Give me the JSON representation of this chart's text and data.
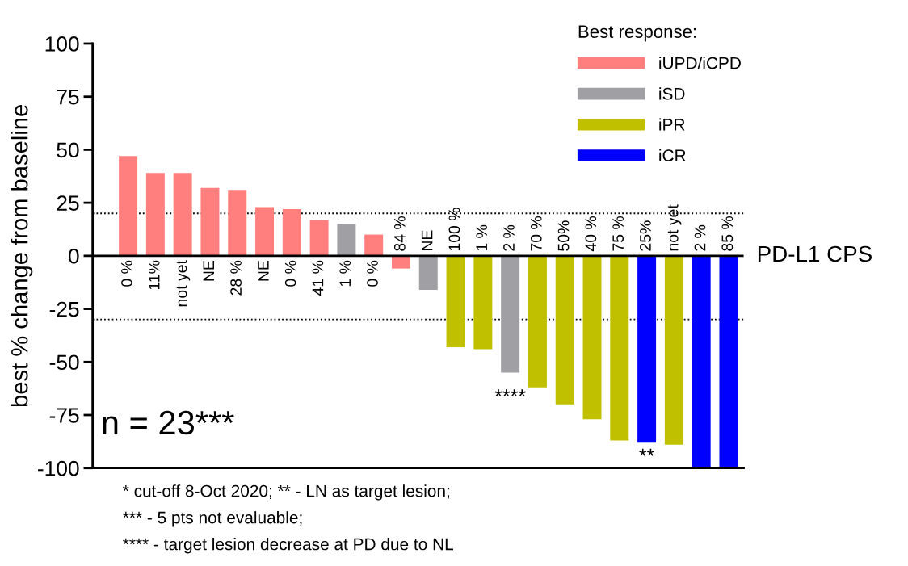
{
  "chart_data": {
    "type": "bar",
    "ylabel": "best % change from baseline",
    "legend_title": "Best response:",
    "legend": "top right",
    "categories": [
      "0 %",
      "11%",
      "not yet",
      "NE",
      "28 %",
      "NE",
      "0 %",
      "41 %",
      "1 %",
      "0 %",
      "84 %",
      "NE",
      "100 %",
      "1 %",
      "2 %",
      "70 %",
      "50%",
      "40 %",
      "75 %",
      "25%",
      "not yet",
      "2 %",
      "85 %"
    ],
    "series": [
      {
        "name": "iUPD/iCPD",
        "color": "#ff7f7f",
        "values": [
          47,
          39,
          39,
          32,
          31,
          23,
          22,
          17,
          null,
          10,
          -6,
          null,
          null,
          null,
          null,
          null,
          null,
          null,
          null,
          null,
          null,
          null,
          null
        ]
      },
      {
        "name": "iSD",
        "color": "#a0a0a4",
        "values": [
          null,
          null,
          null,
          null,
          null,
          null,
          null,
          null,
          15,
          null,
          null,
          -16,
          null,
          null,
          -55,
          null,
          null,
          null,
          null,
          null,
          null,
          null,
          null
        ]
      },
      {
        "name": "iPR",
        "color": "#c0c000",
        "values": [
          null,
          null,
          null,
          null,
          null,
          null,
          null,
          null,
          null,
          null,
          null,
          null,
          -43,
          -44,
          null,
          -62,
          -70,
          -77,
          -87,
          null,
          -89,
          null,
          null
        ]
      },
      {
        "name": "iCR",
        "color": "#0000ff",
        "values": [
          null,
          null,
          null,
          null,
          null,
          null,
          null,
          null,
          null,
          null,
          null,
          null,
          null,
          null,
          null,
          null,
          null,
          null,
          null,
          -88,
          null,
          -100,
          -100
        ]
      }
    ],
    "ylim": [
      -100,
      100
    ],
    "yticks": [
      -100,
      -75,
      -50,
      -25,
      0,
      25,
      50,
      75,
      100
    ],
    "ref_lines": [
      {
        "axis": "y",
        "value": 20,
        "line_style": "dotted"
      },
      {
        "axis": "y",
        "value": -30,
        "line_style": "dotted"
      }
    ],
    "annotations": [
      "PD-L1 CPS",
      "n = 23***",
      "****",
      "**",
      "* cut-off 8-Oct 2020; ** - LN as target lesion;",
      "*** - 5 pts not evaluable;",
      "**** - target lesion decrease at PD due to NL"
    ],
    "grid": false
  }
}
